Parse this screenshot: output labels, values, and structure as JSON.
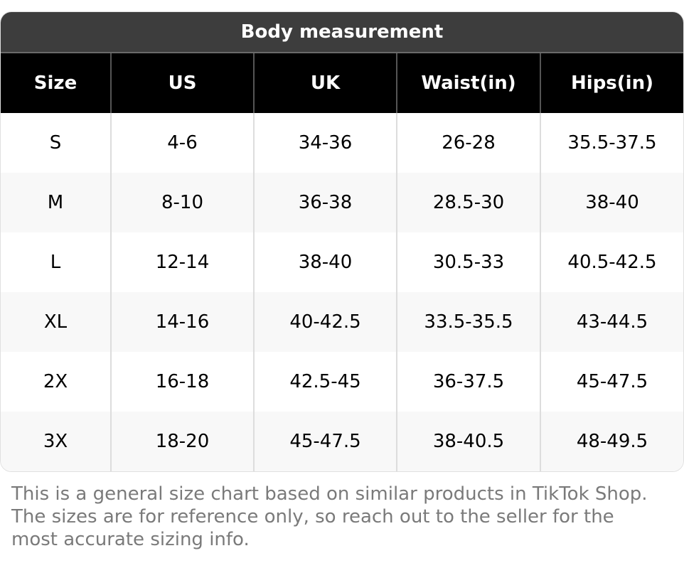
{
  "title": "Body measurement",
  "columns": [
    "Size",
    "US",
    "UK",
    "Waist(in)",
    "Hips(in)"
  ],
  "rows": [
    [
      "S",
      "4-6",
      "34-36",
      "26-28",
      "35.5-37.5"
    ],
    [
      "M",
      "8-10",
      "36-38",
      "28.5-30",
      "38-40"
    ],
    [
      "L",
      "12-14",
      "38-40",
      "30.5-33",
      "40.5-42.5"
    ],
    [
      "XL",
      "14-16",
      "40-42.5",
      "33.5-35.5",
      "43-44.5"
    ],
    [
      "2X",
      "16-18",
      "42.5-45",
      "36-37.5",
      "45-47.5"
    ],
    [
      "3X",
      "18-20",
      "45-47.5",
      "38-40.5",
      "48-49.5"
    ]
  ],
  "note": "This is a general size chart based on similar products in TikTok Shop. The sizes are for reference only, so reach out to the seller for the most accurate sizing info.",
  "colors": {
    "title_bg": "#3d3d3d",
    "header_bg": "#000000",
    "alt_row_bg": "#f8f8f8",
    "note_text": "#7a7a7a"
  }
}
